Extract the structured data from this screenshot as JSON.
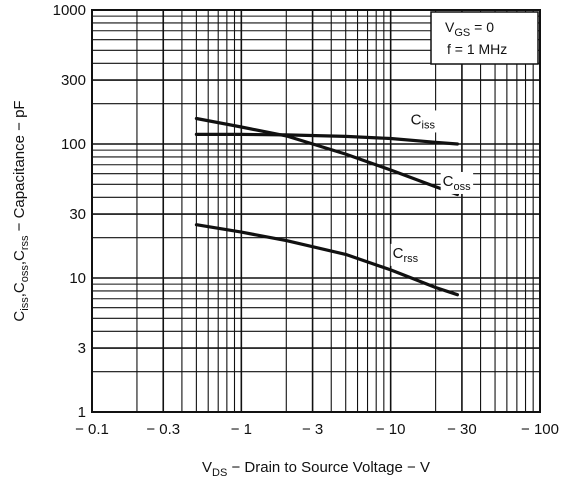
{
  "chart_data": {
    "type": "line",
    "title": "",
    "xlabel": {
      "main": "V",
      "sub": "DS",
      "rest": " − Drain to Source Voltage − V"
    },
    "ylabel": {
      "p1": "C",
      "s1": "iss",
      "p2": ",C",
      "s2": "oss",
      "p3": ",C",
      "s3": "rss",
      "p4": " − Capacitance − pF"
    },
    "x_scale": "log",
    "y_scale": "log",
    "xlim": [
      0.1,
      100
    ],
    "ylim": [
      1,
      1000
    ],
    "x_tick_values": [
      0.1,
      0.3,
      1,
      3,
      10,
      30,
      100
    ],
    "x_tick_labels": [
      "− 0.1",
      "− 0.3",
      "− 1",
      "− 3",
      "− 10",
      "− 30",
      "− 100"
    ],
    "y_tick_values": [
      1,
      3,
      10,
      30,
      100,
      300,
      1000
    ],
    "y_tick_labels": [
      "1",
      "3",
      "10",
      "30",
      "100",
      "300",
      "1000"
    ],
    "grid": true,
    "conditions": {
      "line1": {
        "main": "V",
        "sub": "GS",
        "rest": " = 0"
      },
      "line2": "f = 1 MHz"
    },
    "series": [
      {
        "name": {
          "main": "C",
          "sub": "iss"
        },
        "x": [
          0.5,
          1,
          2,
          5,
          10,
          20,
          28
        ],
        "y": [
          118,
          118,
          117,
          114,
          110,
          103,
          100
        ]
      },
      {
        "name": {
          "main": "C",
          "sub": "oss"
        },
        "x": [
          0.5,
          1,
          2,
          5,
          10,
          20,
          28
        ],
        "y": [
          155,
          134,
          115,
          84,
          64,
          48,
          42
        ]
      },
      {
        "name": {
          "main": "C",
          "sub": "rss"
        },
        "x": [
          0.5,
          1,
          2,
          5,
          10,
          20,
          28
        ],
        "y": [
          25,
          22,
          19,
          15,
          11.5,
          8.5,
          7.5
        ]
      }
    ]
  }
}
